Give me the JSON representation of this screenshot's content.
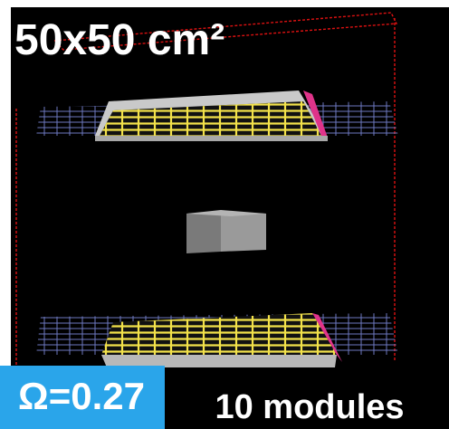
{
  "labels": {
    "size": "50x50 cm²",
    "omega": "Ω=0.27",
    "modules": "10 modules"
  }
}
